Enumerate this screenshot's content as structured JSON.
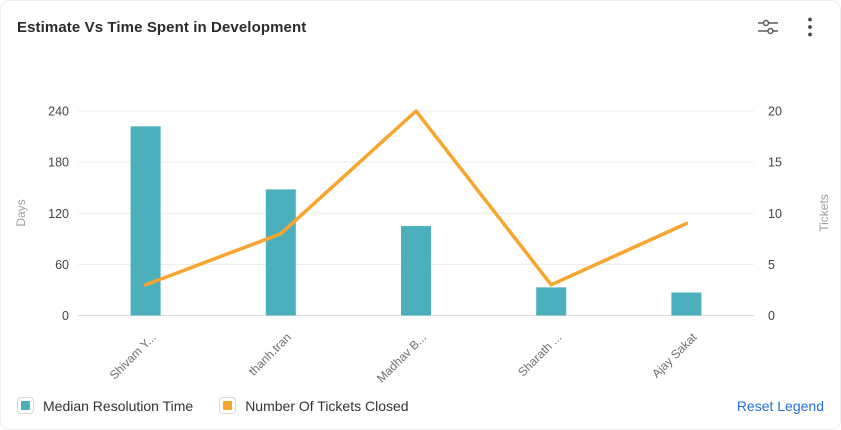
{
  "card": {
    "title": "Estimate Vs Time Spent in Development"
  },
  "toolbar": {
    "settings_icon": "sliders-icon",
    "menu_icon": "kebab-menu-icon"
  },
  "chart_data": {
    "type": "combo-bar-line",
    "categories": [
      "Shivam Y...",
      "thanh.tran",
      "Madhav B...",
      "Sharath ...",
      "Ajay Sakat"
    ],
    "series": [
      {
        "name": "Median Resolution Time",
        "type": "bar",
        "yaxis": "left",
        "color": "#4BB0BB",
        "values": [
          222,
          148,
          105,
          33,
          27
        ]
      },
      {
        "name": "Number Of Tickets Closed",
        "type": "line",
        "yaxis": "right",
        "color": "#F8A42F",
        "values": [
          3,
          8,
          20,
          3,
          9
        ]
      }
    ],
    "left_axis": {
      "name": "Days",
      "min": 0,
      "max": 240,
      "ticks": [
        0,
        60,
        120,
        180,
        240
      ]
    },
    "right_axis": {
      "name": "Tickets",
      "min": 0,
      "max": 20,
      "ticks": [
        0,
        5,
        10,
        15,
        20
      ]
    },
    "grid": true,
    "legend_position": "bottom-left"
  },
  "legend": {
    "reset_label": "Reset Legend"
  },
  "colors": {
    "bar": "#4BB0BB",
    "line": "#F8A42F",
    "link": "#2371D9",
    "grid": "#ececec",
    "axis_line": "#dcdcdc",
    "tick_label": "#444444",
    "axis_name": "#9e9e9e",
    "x_label": "#6f6f6f"
  }
}
